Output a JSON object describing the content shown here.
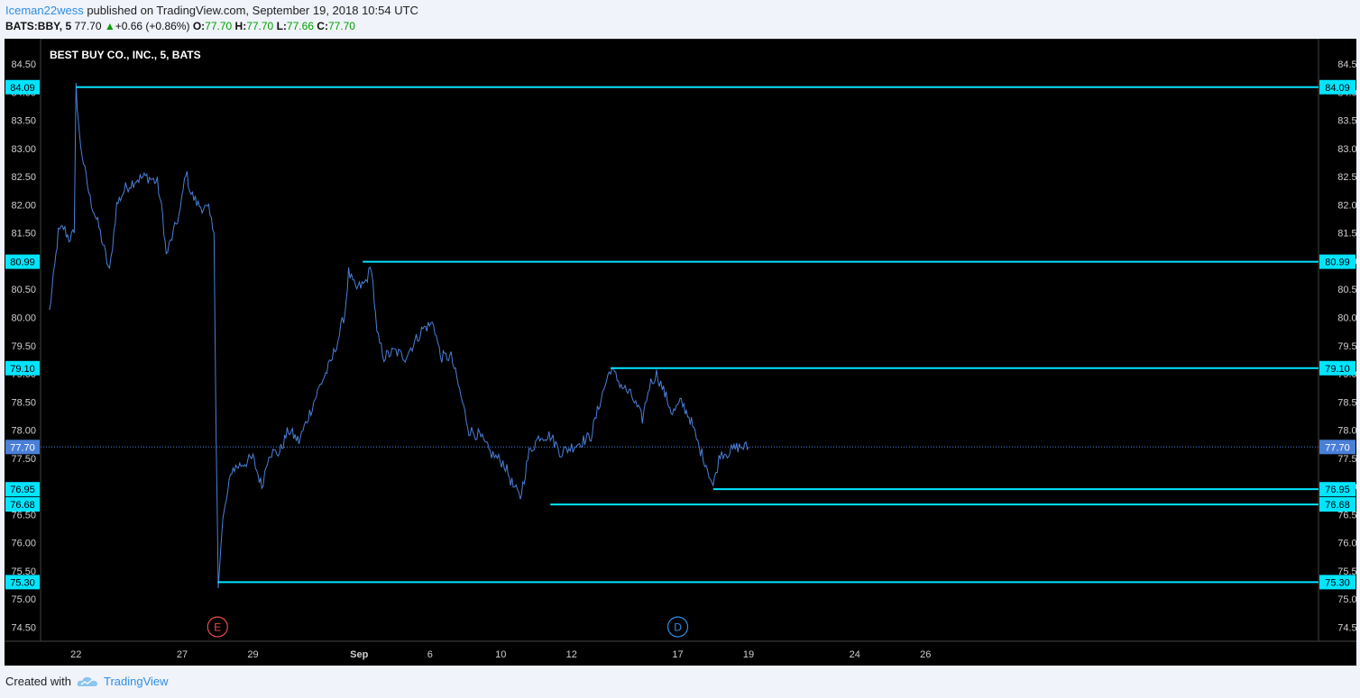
{
  "header": {
    "author": "Iceman22wess",
    "published": " published on TradingView.com, September 19, 2018 10:54 UTC",
    "symbol": "BATS:BBY, 5",
    "last": "77.70",
    "change": "+0.66 (+0.86%)",
    "o_label": "O:",
    "o_value": "77.70",
    "h_label": "H:",
    "h_value": "77.70",
    "l_label": "L:",
    "l_value": "77.66",
    "c_label": "C:",
    "c_value": "77.70"
  },
  "footer": {
    "created_with": "Created with",
    "brand": "TradingView"
  },
  "colors": {
    "background": "#000000",
    "price_line": "#4a7fd8",
    "levels": "#00e5ff",
    "current": "#4a7fd8",
    "earnings": "#e84c4c",
    "dividend": "#2e8ee6"
  },
  "chart_data": {
    "type": "line",
    "title": "BEST BUY CO., INC., 5, BATS",
    "ylim": [
      74.25,
      84.95
    ],
    "y_ticks": [
      "74.50",
      "75.00",
      "75.50",
      "76.00",
      "76.50",
      "77.00",
      "77.50",
      "78.00",
      "78.50",
      "79.00",
      "79.50",
      "80.00",
      "80.50",
      "81.00",
      "81.50",
      "82.00",
      "82.50",
      "83.00",
      "83.50",
      "84.00",
      "84.50"
    ],
    "x_ticks": [
      {
        "label": "22",
        "x": 0.6
      },
      {
        "label": "27",
        "x": 3.6
      },
      {
        "label": "29",
        "x": 5.6
      },
      {
        "label": "Sep",
        "x": 8.6
      },
      {
        "label": "6",
        "x": 10.6
      },
      {
        "label": "10",
        "x": 12.6
      },
      {
        "label": "12",
        "x": 14.6
      },
      {
        "label": "17",
        "x": 17.6
      },
      {
        "label": "19",
        "x": 19.6
      },
      {
        "label": "24",
        "x": 22.6
      },
      {
        "label": "26",
        "x": 24.6
      }
    ],
    "x_range": [
      -0.4,
      35.7
    ],
    "current_price": {
      "value": 77.7,
      "label": "77.70"
    },
    "levels": [
      {
        "value": 84.09,
        "label": "84.09",
        "from": 0.6
      },
      {
        "value": 80.99,
        "label": "80.99",
        "from": 8.7
      },
      {
        "value": 79.1,
        "label": "79.10",
        "from": 15.7
      },
      {
        "value": 76.95,
        "label": "76.95",
        "from": 18.6
      },
      {
        "value": 76.68,
        "label": "76.68",
        "from": 14.0
      },
      {
        "value": 75.3,
        "label": "75.30",
        "from": 4.6
      }
    ],
    "events": [
      {
        "type": "earnings",
        "label": "E",
        "x": 4.6
      },
      {
        "type": "dividend",
        "label": "D",
        "x": 17.6
      }
    ],
    "price_anchors": [
      [
        -0.15,
        80.1
      ],
      [
        0.0,
        80.9
      ],
      [
        0.1,
        81.5
      ],
      [
        0.25,
        81.6
      ],
      [
        0.4,
        81.4
      ],
      [
        0.55,
        81.5
      ],
      [
        0.6,
        84.09
      ],
      [
        0.7,
        83.2
      ],
      [
        0.85,
        82.6
      ],
      [
        1.0,
        82.1
      ],
      [
        1.25,
        81.6
      ],
      [
        1.4,
        81.2
      ],
      [
        1.55,
        80.8
      ],
      [
        1.75,
        82.0
      ],
      [
        2.0,
        82.3
      ],
      [
        2.3,
        82.45
      ],
      [
        2.6,
        82.5
      ],
      [
        2.9,
        82.4
      ],
      [
        3.05,
        81.8
      ],
      [
        3.15,
        81.1
      ],
      [
        3.35,
        81.5
      ],
      [
        3.55,
        81.9
      ],
      [
        3.7,
        82.6
      ],
      [
        3.85,
        82.2
      ],
      [
        4.05,
        82.0
      ],
      [
        4.35,
        81.9
      ],
      [
        4.5,
        81.5
      ],
      [
        4.56,
        77.8
      ],
      [
        4.62,
        75.3
      ],
      [
        4.75,
        76.4
      ],
      [
        5.0,
        77.3
      ],
      [
        5.3,
        77.4
      ],
      [
        5.6,
        77.5
      ],
      [
        5.85,
        77.0
      ],
      [
        6.05,
        77.6
      ],
      [
        6.35,
        77.6
      ],
      [
        6.6,
        78.0
      ],
      [
        6.9,
        77.8
      ],
      [
        7.2,
        78.3
      ],
      [
        7.5,
        78.8
      ],
      [
        7.8,
        79.2
      ],
      [
        8.0,
        79.6
      ],
      [
        8.2,
        80.1
      ],
      [
        8.3,
        80.8
      ],
      [
        8.5,
        80.5
      ],
      [
        8.75,
        80.6
      ],
      [
        8.95,
        80.9
      ],
      [
        9.1,
        79.7
      ],
      [
        9.3,
        79.3
      ],
      [
        9.6,
        79.4
      ],
      [
        9.9,
        79.3
      ],
      [
        10.1,
        79.5
      ],
      [
        10.4,
        79.8
      ],
      [
        10.7,
        79.9
      ],
      [
        10.9,
        79.3
      ],
      [
        11.2,
        79.3
      ],
      [
        11.4,
        78.8
      ],
      [
        11.7,
        78.0
      ],
      [
        12.0,
        77.9
      ],
      [
        12.3,
        77.6
      ],
      [
        12.7,
        77.4
      ],
      [
        12.95,
        77.0
      ],
      [
        13.15,
        76.8
      ],
      [
        13.4,
        77.6
      ],
      [
        13.7,
        77.9
      ],
      [
        14.0,
        77.9
      ],
      [
        14.3,
        77.6
      ],
      [
        14.6,
        77.7
      ],
      [
        14.9,
        77.8
      ],
      [
        15.15,
        77.9
      ],
      [
        15.4,
        78.5
      ],
      [
        15.7,
        79.1
      ],
      [
        16.0,
        78.8
      ],
      [
        16.3,
        78.6
      ],
      [
        16.6,
        78.2
      ],
      [
        16.8,
        78.8
      ],
      [
        17.0,
        79.0
      ],
      [
        17.2,
        78.7
      ],
      [
        17.45,
        78.3
      ],
      [
        17.7,
        78.5
      ],
      [
        17.95,
        78.2
      ],
      [
        18.2,
        77.7
      ],
      [
        18.4,
        77.4
      ],
      [
        18.6,
        77.0
      ],
      [
        18.8,
        77.6
      ],
      [
        19.0,
        77.6
      ],
      [
        19.3,
        77.7
      ],
      [
        19.6,
        77.7
      ]
    ]
  }
}
